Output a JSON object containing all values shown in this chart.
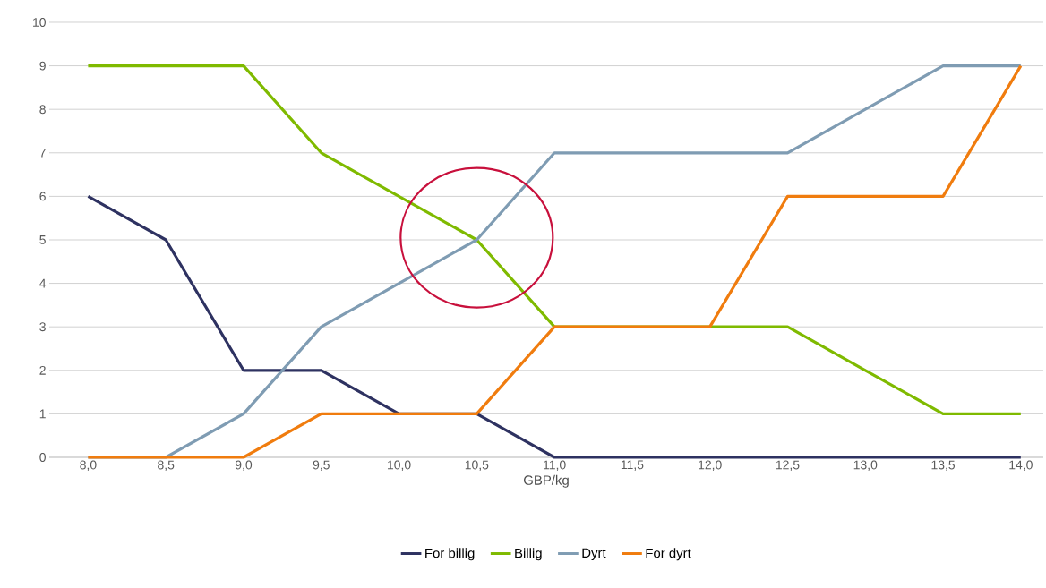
{
  "chart_data": {
    "type": "line",
    "xlabel": "GBP/kg",
    "categories": [
      "8,0",
      "8,5",
      "9,0",
      "9,5",
      "10,0",
      "10,5",
      "11,0",
      "11,5",
      "12,0",
      "12,5",
      "13,0",
      "13,5",
      "14,0"
    ],
    "series": [
      {
        "name": "For billig",
        "color": "#2e3261",
        "values": [
          6,
          5,
          2,
          2,
          1,
          1,
          0,
          0,
          0,
          0,
          0,
          0,
          0
        ]
      },
      {
        "name": "Billig",
        "color": "#7fba00",
        "values": [
          9,
          9,
          9,
          7,
          6,
          5,
          3,
          3,
          3,
          3,
          2,
          1,
          1
        ]
      },
      {
        "name": "Dyrt",
        "color": "#7f9cb3",
        "values": [
          0,
          0,
          1,
          3,
          4,
          5,
          7,
          7,
          7,
          7,
          8,
          9,
          9
        ]
      },
      {
        "name": "For dyrt",
        "color": "#f07c0e",
        "values": [
          0,
          0,
          0,
          1,
          1,
          1,
          3,
          3,
          3,
          6,
          6,
          6,
          9
        ]
      }
    ],
    "ylim": [
      0,
      10
    ],
    "yticks": [
      0,
      1,
      2,
      3,
      4,
      5,
      6,
      7,
      8,
      9,
      10
    ],
    "grid": "y",
    "legend": "bottom",
    "marker": "none",
    "line_style": "solid"
  }
}
